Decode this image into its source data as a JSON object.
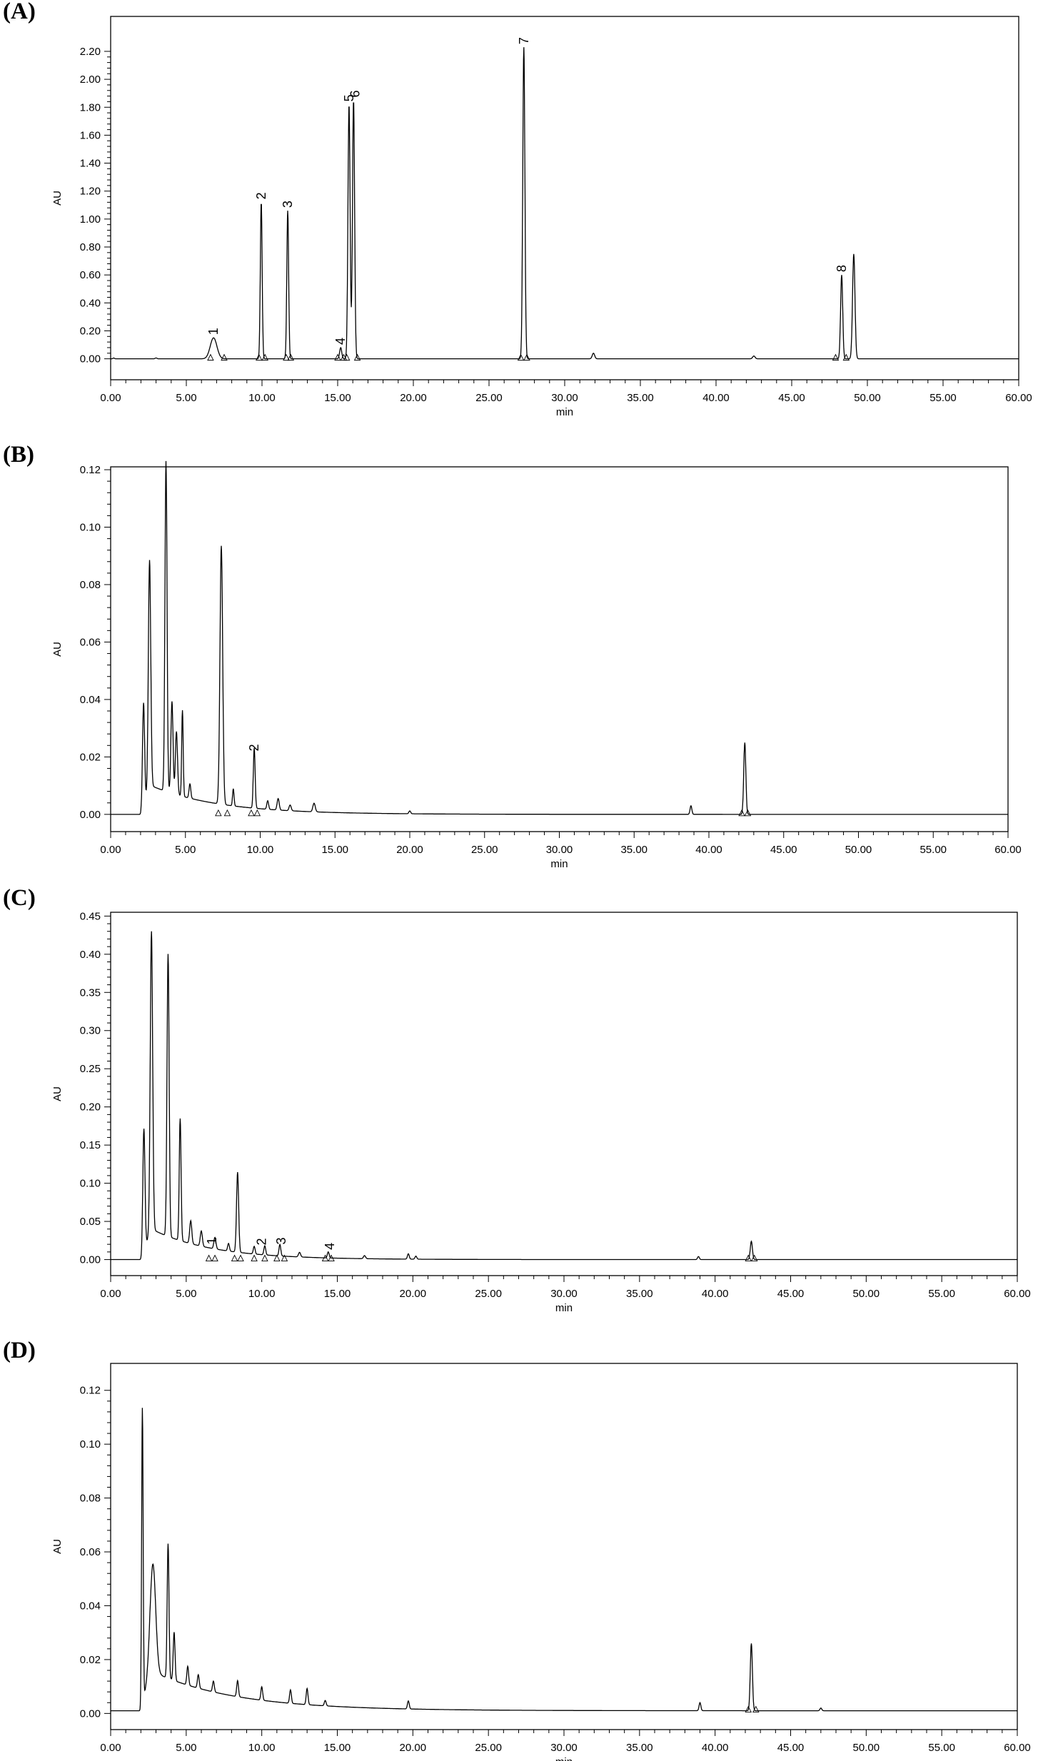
{
  "chart_data": [
    {
      "panel": "(A)",
      "type": "line",
      "xlabel": "min",
      "ylabel": "AU",
      "xlim": [
        0,
        60
      ],
      "ylim": [
        -0.15,
        2.45
      ],
      "xticks": [
        0,
        5,
        10,
        15,
        20,
        25,
        30,
        35,
        40,
        45,
        50,
        55,
        60
      ],
      "yticks": [
        0.0,
        0.2,
        0.4,
        0.6,
        0.8,
        1.0,
        1.2,
        1.4,
        1.6,
        1.8,
        2.0,
        2.2
      ],
      "baseline": 0.0,
      "peaks": [
        {
          "x": 0.2,
          "h": 0.006,
          "w": 0.05
        },
        {
          "x": 3.0,
          "h": 0.006,
          "w": 0.06
        },
        {
          "x": 6.8,
          "h": 0.15,
          "w": 0.22
        },
        {
          "x": 9.95,
          "h": 1.12,
          "w": 0.06
        },
        {
          "x": 11.7,
          "h": 1.06,
          "w": 0.06
        },
        {
          "x": 15.2,
          "h": 0.08,
          "w": 0.07
        },
        {
          "x": 15.75,
          "h": 1.82,
          "w": 0.07
        },
        {
          "x": 16.05,
          "h": 1.85,
          "w": 0.07
        },
        {
          "x": 27.3,
          "h": 2.23,
          "w": 0.07
        },
        {
          "x": 31.9,
          "h": 0.04,
          "w": 0.08
        },
        {
          "x": 42.5,
          "h": 0.02,
          "w": 0.08
        },
        {
          "x": 48.3,
          "h": 0.6,
          "w": 0.07
        },
        {
          "x": 49.1,
          "h": 0.75,
          "w": 0.08
        }
      ],
      "peak_labels": [
        {
          "label": "1",
          "x": 6.8,
          "h": 0.15
        },
        {
          "label": "2",
          "x": 9.95,
          "h": 1.12
        },
        {
          "label": "3",
          "x": 11.7,
          "h": 1.06
        },
        {
          "label": "4",
          "x": 15.2,
          "h": 0.08
        },
        {
          "label": "5",
          "x": 15.75,
          "h": 1.82
        },
        {
          "label": "6",
          "x": 16.15,
          "h": 1.85
        },
        {
          "label": "7",
          "x": 27.3,
          "h": 2.23
        },
        {
          "label": "8",
          "x": 48.3,
          "h": 0.6
        }
      ],
      "markers": [
        6.6,
        7.5,
        9.8,
        10.2,
        11.6,
        11.9,
        15.0,
        15.4,
        15.6,
        16.3,
        27.1,
        27.5,
        47.9,
        48.6
      ]
    },
    {
      "panel": "(B)",
      "type": "line",
      "xlabel": "min",
      "ylabel": "AU",
      "xlim": [
        0,
        60
      ],
      "ylim": [
        -0.006,
        0.121
      ],
      "xticks": [
        0,
        5,
        10,
        15,
        20,
        25,
        30,
        35,
        40,
        45,
        50,
        55,
        60
      ],
      "yticks": [
        0.0,
        0.02,
        0.04,
        0.06,
        0.08,
        0.1,
        0.12
      ],
      "baseline": 0.0,
      "hump": {
        "start": 2.0,
        "peak": 2.7,
        "h": 0.01,
        "decay": 4.5
      },
      "peaks": [
        {
          "x": 2.2,
          "h": 0.036,
          "w": 0.07
        },
        {
          "x": 2.6,
          "h": 0.08,
          "w": 0.08
        },
        {
          "x": 3.7,
          "h": 0.115,
          "w": 0.07
        },
        {
          "x": 4.1,
          "h": 0.032,
          "w": 0.07
        },
        {
          "x": 4.4,
          "h": 0.022,
          "w": 0.07
        },
        {
          "x": 4.8,
          "h": 0.03,
          "w": 0.05
        },
        {
          "x": 5.3,
          "h": 0.005,
          "w": 0.06
        },
        {
          "x": 7.4,
          "h": 0.09,
          "w": 0.09
        },
        {
          "x": 8.2,
          "h": 0.006,
          "w": 0.05
        },
        {
          "x": 9.6,
          "h": 0.021,
          "w": 0.06
        },
        {
          "x": 10.5,
          "h": 0.003,
          "w": 0.06
        },
        {
          "x": 11.2,
          "h": 0.004,
          "w": 0.07
        },
        {
          "x": 12.0,
          "h": 0.002,
          "w": 0.07
        },
        {
          "x": 13.6,
          "h": 0.003,
          "w": 0.08
        },
        {
          "x": 20.0,
          "h": 0.001,
          "w": 0.06
        },
        {
          "x": 38.8,
          "h": 0.003,
          "w": 0.06
        },
        {
          "x": 42.4,
          "h": 0.025,
          "w": 0.07
        }
      ],
      "peak_labels": [
        {
          "label": "2",
          "x": 9.6,
          "h": 0.021
        }
      ],
      "markers": [
        7.2,
        7.8,
        9.4,
        9.8,
        42.2,
        42.6
      ]
    },
    {
      "panel": "(C)",
      "type": "line",
      "xlabel": "min",
      "ylabel": "AU",
      "xlim": [
        0,
        60
      ],
      "ylim": [
        -0.021,
        0.455
      ],
      "xticks": [
        0,
        5,
        10,
        15,
        20,
        25,
        30,
        35,
        40,
        45,
        50,
        55,
        60
      ],
      "yticks": [
        0.0,
        0.05,
        0.1,
        0.15,
        0.2,
        0.25,
        0.3,
        0.35,
        0.4,
        0.45
      ],
      "baseline": 0.0,
      "hump": {
        "start": 2.0,
        "peak": 2.7,
        "h": 0.04,
        "decay": 4.0
      },
      "peaks": [
        {
          "x": 2.2,
          "h": 0.16,
          "w": 0.07
        },
        {
          "x": 2.7,
          "h": 0.39,
          "w": 0.08
        },
        {
          "x": 3.8,
          "h": 0.37,
          "w": 0.07
        },
        {
          "x": 4.6,
          "h": 0.16,
          "w": 0.06
        },
        {
          "x": 5.3,
          "h": 0.03,
          "w": 0.07
        },
        {
          "x": 6.0,
          "h": 0.02,
          "w": 0.07
        },
        {
          "x": 6.9,
          "h": 0.015,
          "w": 0.07
        },
        {
          "x": 7.8,
          "h": 0.01,
          "w": 0.06
        },
        {
          "x": 8.4,
          "h": 0.105,
          "w": 0.07
        },
        {
          "x": 9.5,
          "h": 0.01,
          "w": 0.06
        },
        {
          "x": 10.2,
          "h": 0.012,
          "w": 0.06
        },
        {
          "x": 11.2,
          "h": 0.015,
          "w": 0.06
        },
        {
          "x": 12.5,
          "h": 0.006,
          "w": 0.07
        },
        {
          "x": 14.4,
          "h": 0.008,
          "w": 0.06
        },
        {
          "x": 16.8,
          "h": 0.004,
          "w": 0.07
        },
        {
          "x": 19.7,
          "h": 0.007,
          "w": 0.06
        },
        {
          "x": 20.2,
          "h": 0.004,
          "w": 0.06
        },
        {
          "x": 38.9,
          "h": 0.004,
          "w": 0.06
        },
        {
          "x": 42.4,
          "h": 0.024,
          "w": 0.07
        }
      ],
      "peak_labels": [
        {
          "label": "1",
          "x": 6.7,
          "h": 0.016
        },
        {
          "label": "2",
          "x": 10.0,
          "h": 0.015
        },
        {
          "label": "3",
          "x": 11.3,
          "h": 0.016
        },
        {
          "label": "4",
          "x": 14.5,
          "h": 0.009
        }
      ],
      "markers": [
        6.5,
        6.9,
        8.2,
        8.6,
        9.5,
        10.2,
        11.0,
        11.5,
        14.2,
        14.6,
        42.2,
        42.6
      ]
    },
    {
      "panel": "(D)",
      "type": "line",
      "xlabel": "min",
      "ylabel": "AU",
      "xlim": [
        0,
        60
      ],
      "ylim": [
        -0.006,
        0.13
      ],
      "xticks": [
        0,
        5,
        10,
        15,
        20,
        25,
        30,
        35,
        40,
        45,
        50,
        55,
        60
      ],
      "yticks": [
        0.0,
        0.02,
        0.04,
        0.06,
        0.08,
        0.1,
        0.12
      ],
      "baseline": 0.001,
      "hump": {
        "start": 2.0,
        "peak": 2.6,
        "h": 0.015,
        "decay": 5.5
      },
      "peaks": [
        {
          "x": 2.1,
          "h": 0.11,
          "w": 0.05
        },
        {
          "x": 2.8,
          "h": 0.04,
          "w": 0.18
        },
        {
          "x": 3.8,
          "h": 0.05,
          "w": 0.06
        },
        {
          "x": 4.2,
          "h": 0.018,
          "w": 0.06
        },
        {
          "x": 5.1,
          "h": 0.007,
          "w": 0.06
        },
        {
          "x": 5.8,
          "h": 0.005,
          "w": 0.06
        },
        {
          "x": 6.8,
          "h": 0.004,
          "w": 0.06
        },
        {
          "x": 8.4,
          "h": 0.006,
          "w": 0.06
        },
        {
          "x": 10.0,
          "h": 0.005,
          "w": 0.06
        },
        {
          "x": 11.9,
          "h": 0.005,
          "w": 0.06
        },
        {
          "x": 13.0,
          "h": 0.006,
          "w": 0.06
        },
        {
          "x": 14.2,
          "h": 0.002,
          "w": 0.06
        },
        {
          "x": 19.7,
          "h": 0.003,
          "w": 0.06
        },
        {
          "x": 39.0,
          "h": 0.003,
          "w": 0.06
        },
        {
          "x": 42.4,
          "h": 0.025,
          "w": 0.07
        },
        {
          "x": 47.0,
          "h": 0.001,
          "w": 0.06
        }
      ],
      "peak_labels": [],
      "markers": [
        42.2,
        42.7
      ]
    }
  ]
}
